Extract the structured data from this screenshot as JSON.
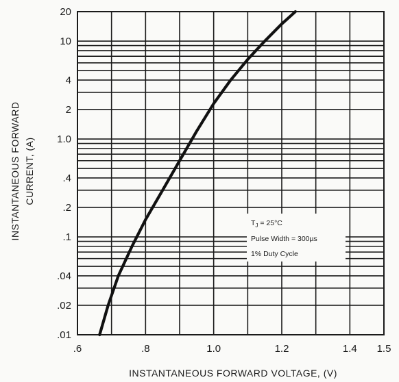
{
  "chart_data": {
    "type": "line",
    "xlabel": "INSTANTANEOUS FORWARD VOLTAGE, (V)",
    "ylabel_line1": "INSTANTANEOUS FORWARD",
    "ylabel_line2": "CURRENT, (A)",
    "xscale": "linear",
    "yscale": "log",
    "xlim": [
      0.6,
      1.5
    ],
    "ylim": [
      0.01,
      20
    ],
    "grid": true,
    "x_tick_labels": [
      ".6",
      ".8",
      "1.0",
      "1.2",
      "1.4",
      "1.5"
    ],
    "x_tick_values": [
      0.6,
      0.8,
      1.0,
      1.2,
      1.4,
      1.5
    ],
    "y_tick_labels": [
      "20",
      "10",
      "4",
      "2",
      "1.0",
      ".4",
      ".2",
      ".1",
      ".04",
      ".02",
      ".01"
    ],
    "y_tick_values": [
      20,
      10,
      4,
      2,
      1.0,
      0.4,
      0.2,
      0.1,
      0.04,
      0.02,
      0.01
    ],
    "annotation": {
      "line1_main": "T",
      "line1_sub": "J",
      "line1_rest": " = 25°C",
      "line2": "Pulse Width = 300µs",
      "line3": "1% Duty Cycle"
    },
    "series": [
      {
        "x": [
          0.665,
          0.69,
          0.72,
          0.76,
          0.8,
          0.85,
          0.9,
          0.95,
          1.0,
          1.05,
          1.1,
          1.15,
          1.2,
          1.24
        ],
        "y": [
          0.01,
          0.02,
          0.04,
          0.08,
          0.15,
          0.3,
          0.6,
          1.2,
          2.3,
          4.0,
          6.5,
          10.0,
          15.0,
          20.0
        ]
      }
    ]
  }
}
